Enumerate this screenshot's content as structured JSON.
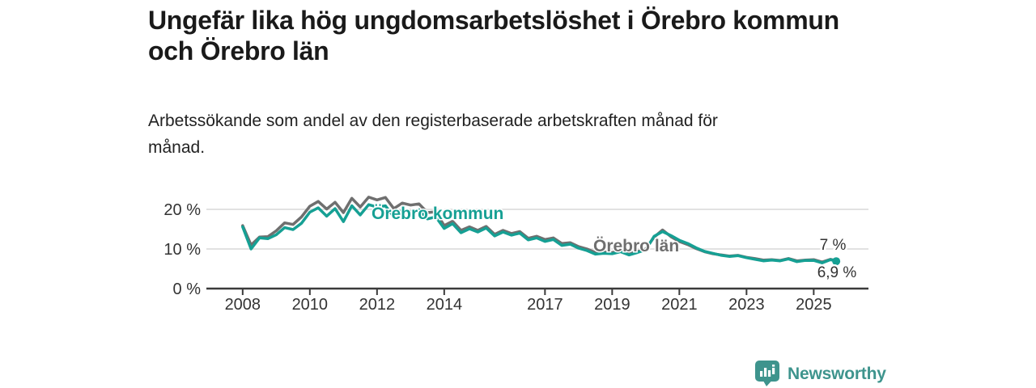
{
  "header": {
    "title_line1": "Ungefär lika hög ungdomsarbetslöshet i Örebro kommun",
    "title_line2": "och Örebro län",
    "subtitle_line1": "Arbetssökande som andel av den registerbaserade arbetskraften månad för",
    "subtitle_line2": "månad."
  },
  "colors": {
    "kommun_teal": "#16a094",
    "lan_gray": "#6f6f6f",
    "axis": "#3b3b3b",
    "grid": "#d9d9d9",
    "tick_text": "#333333",
    "logo_teal": "#3e948d"
  },
  "footer": {
    "brand": "Newsworthy"
  },
  "chart_data": {
    "type": "line",
    "title": "Ungefär lika hög ungdomsarbetslöshet i Örebro kommun och Örebro län",
    "subtitle": "Arbetssökande som andel av den registerbaserade arbetskraften månad för månad.",
    "xlabel": "",
    "ylabel": "",
    "grid": "horizontal",
    "legend_position": "inline-labels",
    "ylim": [
      0,
      24.6
    ],
    "xlim": [
      2006.92,
      2026.63
    ],
    "y_ticks": [
      {
        "label": "20 %",
        "value": 20
      },
      {
        "label": "10 %",
        "value": 10
      },
      {
        "label": "0 %",
        "value": 0
      }
    ],
    "x_ticks": [
      {
        "label": "2008",
        "value": 2008
      },
      {
        "label": "2010",
        "value": 2010
      },
      {
        "label": "2012",
        "value": 2012
      },
      {
        "label": "2014",
        "value": 2014
      },
      {
        "label": "2017",
        "value": 2017
      },
      {
        "label": "2019",
        "value": 2019
      },
      {
        "label": "2021",
        "value": 2021
      },
      {
        "label": "2023",
        "value": 2023
      },
      {
        "label": "2025",
        "value": 2025
      }
    ],
    "x": [
      2008,
      2008.25,
      2008.5,
      2008.75,
      2009,
      2009.25,
      2009.5,
      2009.75,
      2010,
      2010.25,
      2010.5,
      2010.75,
      2011,
      2011.25,
      2011.5,
      2011.75,
      2012,
      2012.25,
      2012.5,
      2012.75,
      2013,
      2013.25,
      2013.5,
      2013.75,
      2014,
      2014.25,
      2014.5,
      2014.75,
      2015,
      2015.25,
      2015.5,
      2015.75,
      2016,
      2016.25,
      2016.5,
      2016.75,
      2017,
      2017.25,
      2017.5,
      2017.75,
      2018,
      2018.25,
      2018.5,
      2018.75,
      2019,
      2019.25,
      2019.5,
      2019.75,
      2020,
      2020.25,
      2020.5,
      2020.75,
      2021,
      2021.25,
      2021.5,
      2021.75,
      2022,
      2022.25,
      2022.5,
      2022.75,
      2023,
      2023.25,
      2023.5,
      2023.75,
      2024,
      2024.25,
      2024.5,
      2024.75,
      2025,
      2025.25,
      2025.5,
      2025.67
    ],
    "series": [
      {
        "name": "Örebro län",
        "color": "#6f6f6f",
        "end_label": "7 %",
        "end_value": 7.0,
        "values": [
          15.9,
          11.0,
          13.0,
          13.1,
          14.6,
          16.6,
          16.2,
          18.1,
          20.8,
          22.0,
          20.1,
          21.8,
          19.2,
          22.8,
          20.6,
          23.1,
          22.4,
          23.0,
          20.2,
          21.6,
          21.1,
          21.4,
          19.2,
          19.4,
          15.9,
          17.0,
          14.7,
          15.6,
          14.7,
          15.7,
          13.7,
          14.7,
          13.9,
          14.4,
          12.7,
          13.2,
          12.4,
          12.8,
          11.4,
          11.6,
          10.6,
          10.0,
          9.1,
          9.2,
          9.1,
          9.6,
          8.8,
          9.3,
          10.0,
          13.0,
          14.8,
          13.1,
          11.9,
          11.1,
          10.1,
          9.3,
          8.8,
          8.5,
          8.2,
          8.4,
          7.9,
          7.6,
          7.2,
          7.3,
          7.1,
          7.6,
          7.0,
          7.2,
          7.3,
          6.7,
          7.4,
          7.0
        ]
      },
      {
        "name": "Örebro kommun",
        "color": "#16a094",
        "end_label": "6,9 %",
        "end_value": 6.9,
        "end_dot": true,
        "values": [
          15.6,
          10.0,
          12.8,
          12.6,
          13.6,
          15.4,
          14.9,
          16.5,
          19.3,
          20.4,
          18.3,
          20.2,
          16.9,
          20.9,
          18.6,
          21.2,
          20.6,
          20.9,
          18.1,
          19.8,
          19.4,
          19.9,
          17.6,
          18.1,
          15.2,
          16.4,
          14.1,
          15.1,
          14.3,
          15.3,
          13.3,
          14.3,
          13.5,
          14.0,
          12.3,
          12.8,
          11.9,
          12.4,
          10.9,
          11.2,
          10.2,
          9.6,
          8.7,
          8.9,
          8.8,
          9.3,
          8.5,
          9.1,
          9.8,
          13.2,
          14.4,
          13.4,
          12.2,
          11.4,
          10.3,
          9.4,
          8.9,
          8.4,
          8.1,
          8.3,
          7.8,
          7.4,
          7.0,
          7.2,
          7.0,
          7.5,
          6.8,
          7.1,
          7.1,
          6.5,
          7.3,
          6.9
        ]
      }
    ]
  }
}
